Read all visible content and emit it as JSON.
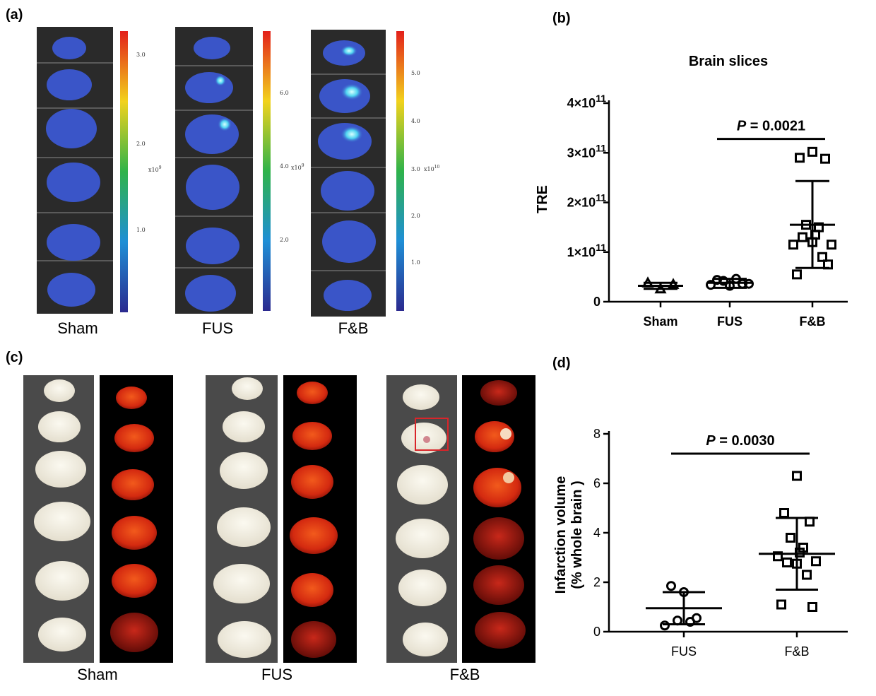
{
  "panels": {
    "a": {
      "label": "(a)",
      "groups": [
        {
          "name": "Sham",
          "cb_ticks": [
            "3.0",
            "2.0",
            "1.0"
          ],
          "cb_unit_base": "x10",
          "cb_unit_exp": "9"
        },
        {
          "name": "FUS",
          "cb_ticks": [
            "6.0",
            "4.0",
            "2.0"
          ],
          "cb_unit_base": "x10",
          "cb_unit_exp": "9"
        },
        {
          "name": "F&B",
          "cb_ticks": [
            "5.0",
            "4.0",
            "3.0",
            "2.0",
            "1.0"
          ],
          "cb_unit_base": "x10",
          "cb_unit_exp": "10"
        }
      ],
      "colors": {
        "bg": "#2a2a2a",
        "slice": "#3a55c8",
        "hot": "#9ef2ff"
      }
    },
    "b": {
      "label": "(b)"
    },
    "c": {
      "label": "(c)",
      "groups": [
        {
          "name": "Sham"
        },
        {
          "name": "FUS"
        },
        {
          "name": "F&B"
        }
      ],
      "colors": {
        "bg_photo": "#4a4a4a",
        "bg_ttc": "#000000",
        "tissue": "#f3efe2",
        "ttc": "#d42a10",
        "box": "#d9252a"
      }
    },
    "d": {
      "label": "(d)"
    }
  },
  "chart_data": [
    {
      "type": "scatter",
      "title": "Brain slices",
      "xlabel": "",
      "ylabel": "TRE",
      "categories": [
        "Sham",
        "FUS",
        "F&B"
      ],
      "ylim": [
        0,
        400000000000.0
      ],
      "yticks": [
        {
          "value": 0,
          "label": "0",
          "exp": ""
        },
        {
          "value": 100000000000.0,
          "label": "1×10",
          "exp": "11"
        },
        {
          "value": 200000000000.0,
          "label": "2×10",
          "exp": "11"
        },
        {
          "value": 300000000000.0,
          "label": "3×10",
          "exp": "11"
        },
        {
          "value": 400000000000.0,
          "label": "4×10",
          "exp": "11"
        }
      ],
      "series": [
        {
          "category": "Sham",
          "marker": "triangle",
          "mean": 32000000000.0,
          "sd_low": 26000000000.0,
          "sd_high": 38000000000.0,
          "values": [
            26000000000.0,
            38000000000.0,
            35000000000.0
          ]
        },
        {
          "category": "FUS",
          "marker": "circle",
          "mean": 38000000000.0,
          "sd_low": 28000000000.0,
          "sd_high": 46000000000.0,
          "values": [
            32000000000.0,
            44000000000.0,
            36000000000.0,
            42000000000.0,
            46000000000.0,
            34000000000.0,
            36000000000.0
          ]
        },
        {
          "category": "F&B",
          "marker": "square",
          "mean": 155000000000.0,
          "sd_low": 68000000000.0,
          "sd_high": 243000000000.0,
          "values": [
            302000000000.0,
            290000000000.0,
            288000000000.0,
            155000000000.0,
            150000000000.0,
            115000000000.0,
            115000000000.0,
            120000000000.0,
            130000000000.0,
            90000000000.0,
            55000000000.0,
            75000000000.0,
            135000000000.0
          ]
        }
      ],
      "annotation": {
        "label": "P",
        "value": "= 0.0021",
        "from": "FUS",
        "to": "F&B",
        "y": 328000000000.0
      }
    },
    {
      "type": "scatter",
      "title": "",
      "xlabel": "",
      "ylabel_line1": "Infarction volume",
      "ylabel_line2": "(% whole brain )",
      "categories": [
        "FUS",
        "F&B"
      ],
      "ylim": [
        0,
        8
      ],
      "yticks": [
        {
          "value": 0,
          "label": "0"
        },
        {
          "value": 2,
          "label": "2"
        },
        {
          "value": 4,
          "label": "4"
        },
        {
          "value": 6,
          "label": "6"
        },
        {
          "value": 8,
          "label": "8"
        }
      ],
      "series": [
        {
          "category": "FUS",
          "marker": "circle",
          "mean": 0.95,
          "sd_low": 0.3,
          "sd_high": 1.6,
          "values": [
            1.6,
            1.85,
            0.55,
            0.45,
            0.4,
            0.25
          ]
        },
        {
          "category": "F&B",
          "marker": "square",
          "mean": 3.15,
          "sd_low": 1.7,
          "sd_high": 4.6,
          "values": [
            6.3,
            4.8,
            4.45,
            3.8,
            3.4,
            3.05,
            2.85,
            2.75,
            2.8,
            2.3,
            1.1,
            1.0,
            3.2
          ]
        }
      ],
      "annotation": {
        "label": "P",
        "value": "= 0.0030",
        "from": "FUS",
        "to": "F&B",
        "y": 7.2
      }
    }
  ]
}
